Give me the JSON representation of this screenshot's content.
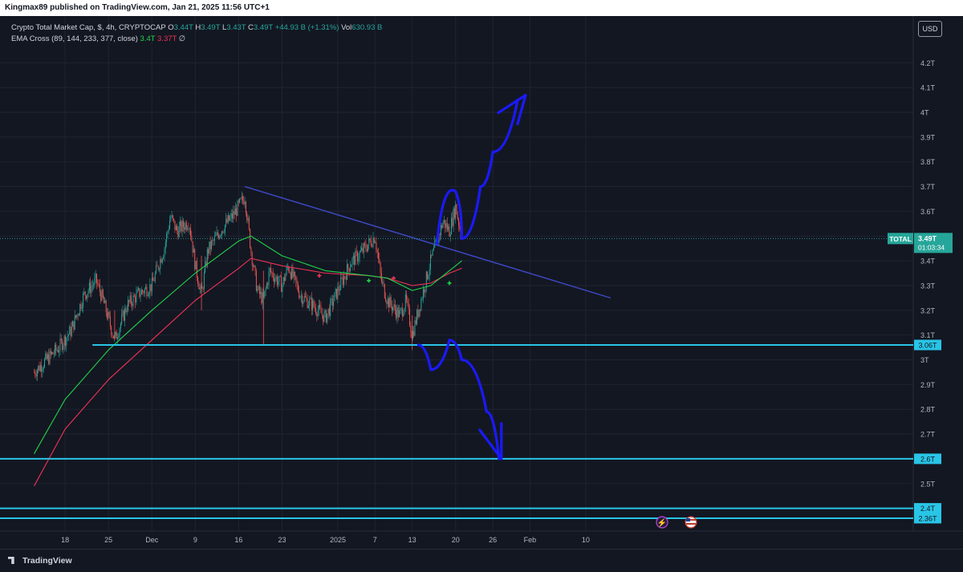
{
  "header": {
    "published_text": "Kingmax89 published on TradingView.com, Jan 21, 2025 11:56 UTC+1"
  },
  "legend": {
    "symbol": "Crypto Total Market Cap, $, 4h, CRYPTOCAP",
    "open_label": "O",
    "open_value": "3.44T",
    "high_label": "H",
    "high_value": "3.49T",
    "low_label": "L",
    "low_value": "3.43T",
    "close_label": "C",
    "close_value": "3.49T",
    "change": "+44.93 B (+1.31%)",
    "vol_label": "Vol",
    "vol_value": "630.93 B",
    "indicator": "EMA Cross (89, 144, 233, 377, close)",
    "ema_fast_value": "3.4T",
    "ema_slow_value": "3.37T",
    "indicator_extra": "∅"
  },
  "currency": "USD",
  "brand": "TradingView",
  "current_price": {
    "symbol": "TOTAL",
    "value": "3.49T",
    "countdown": "01:03:34"
  },
  "colors": {
    "background": "#131722",
    "up": "#26a69a",
    "down": "#ef5350",
    "ema_fast": "#22d34a",
    "ema_slow": "#ef3355",
    "level_line": "#29c5e6",
    "trend_line": "#3f4ac9",
    "drawing": "#1a1aff"
  },
  "chart_data": {
    "type": "candlestick",
    "y_axis": {
      "ticks": [
        "2.5T",
        "2.6T",
        "2.7T",
        "2.8T",
        "2.9T",
        "3T",
        "3.1T",
        "3.2T",
        "3.3T",
        "3.4T",
        "3.5T",
        "3.6T",
        "3.7T",
        "3.8T",
        "3.9T",
        "4T",
        "4.1T",
        "4.2T"
      ],
      "range": [
        2.34,
        4.3
      ]
    },
    "x_axis": {
      "tick_labels": [
        "18",
        "25",
        "Dec",
        "9",
        "16",
        "23",
        "2025",
        "7",
        "13",
        "20",
        "26",
        "Feb",
        "10"
      ]
    },
    "horizontal_levels": [
      {
        "value": 3.06,
        "label": "3.06T"
      },
      {
        "value": 2.6,
        "label": "2.6T"
      },
      {
        "value": 2.4,
        "label": "2.4T"
      },
      {
        "value": 2.36,
        "label": "2.36T"
      }
    ],
    "price_path": [
      [
        "Nov 13",
        2.95
      ],
      [
        "Nov 15",
        3.0
      ],
      [
        "Nov 17",
        3.05
      ],
      [
        "Nov 19",
        3.12
      ],
      [
        "Nov 21",
        3.26
      ],
      [
        "Nov 23",
        3.32
      ],
      [
        "Nov 24",
        3.25
      ],
      [
        "Nov 26",
        3.08
      ],
      [
        "Nov 28",
        3.22
      ],
      [
        "Nov 30",
        3.27
      ],
      [
        "Dec 2",
        3.3
      ],
      [
        "Dec 3",
        3.38
      ],
      [
        "Dec 4",
        3.45
      ],
      [
        "Dec 5",
        3.58
      ],
      [
        "Dec 6",
        3.52
      ],
      [
        "Dec 8",
        3.56
      ],
      [
        "Dec 9",
        3.38
      ],
      [
        "Dec 10",
        3.26
      ],
      [
        "Dec 11",
        3.44
      ],
      [
        "Dec 13",
        3.52
      ],
      [
        "Dec 15",
        3.58
      ],
      [
        "Dec 16",
        3.62
      ],
      [
        "Dec 17",
        3.66
      ],
      [
        "Dec 18",
        3.44
      ],
      [
        "Dec 19",
        3.28
      ],
      [
        "Dec 20",
        3.24
      ],
      [
        "Dec 21",
        3.36
      ],
      [
        "Dec 23",
        3.3
      ],
      [
        "Dec 24",
        3.38
      ],
      [
        "Dec 26",
        3.26
      ],
      [
        "Dec 28",
        3.22
      ],
      [
        "Dec 30",
        3.17
      ],
      [
        "Jan 1",
        3.28
      ],
      [
        "Jan 3",
        3.39
      ],
      [
        "Jan 5",
        3.44
      ],
      [
        "Jan 7",
        3.5
      ],
      [
        "Jan 8",
        3.32
      ],
      [
        "Jan 9",
        3.24
      ],
      [
        "Jan 11",
        3.18
      ],
      [
        "Jan 12",
        3.24
      ],
      [
        "Jan 13",
        3.1
      ],
      [
        "Jan 14",
        3.2
      ],
      [
        "Jan 15",
        3.3
      ],
      [
        "Jan 16",
        3.4
      ],
      [
        "Jan 17",
        3.48
      ],
      [
        "Jan 18",
        3.56
      ],
      [
        "Jan 19",
        3.52
      ],
      [
        "Jan 20",
        3.62
      ],
      [
        "Jan 21",
        3.49
      ]
    ],
    "ema_fast": [
      [
        "Nov 13",
        2.62
      ],
      [
        "Nov 18",
        2.84
      ],
      [
        "Nov 25",
        3.04
      ],
      [
        "Dec 2",
        3.2
      ],
      [
        "Dec 9",
        3.35
      ],
      [
        "Dec 16",
        3.48
      ],
      [
        "Dec 18",
        3.5
      ],
      [
        "Dec 23",
        3.42
      ],
      [
        "Dec 30",
        3.36
      ],
      [
        "Jan 6",
        3.34
      ],
      [
        "Jan 9",
        3.33
      ],
      [
        "Jan 13",
        3.28
      ],
      [
        "Jan 16",
        3.3
      ],
      [
        "Jan 19",
        3.36
      ],
      [
        "Jan 21",
        3.4
      ]
    ],
    "ema_slow": [
      [
        "Nov 13",
        2.49
      ],
      [
        "Nov 18",
        2.72
      ],
      [
        "Nov 25",
        2.92
      ],
      [
        "Dec 2",
        3.08
      ],
      [
        "Dec 9",
        3.24
      ],
      [
        "Dec 16",
        3.37
      ],
      [
        "Dec 18",
        3.41
      ],
      [
        "Dec 23",
        3.38
      ],
      [
        "Dec 30",
        3.35
      ],
      [
        "Jan 6",
        3.34
      ],
      [
        "Jan 9",
        3.33
      ],
      [
        "Jan 13",
        3.3
      ],
      [
        "Jan 16",
        3.31
      ],
      [
        "Jan 19",
        3.35
      ],
      [
        "Jan 21",
        3.37
      ]
    ],
    "cross_markers": [
      {
        "date": "Dec 29",
        "price": 3.34,
        "type": "bearish"
      },
      {
        "date": "Jan 6",
        "price": 3.32,
        "type": "bullish"
      },
      {
        "date": "Jan 10",
        "price": 3.33,
        "type": "bearish"
      },
      {
        "date": "Jan 19",
        "price": 3.31,
        "type": "bullish"
      }
    ],
    "trend_line": [
      [
        "Dec 17",
        3.7
      ],
      [
        "Feb 14",
        3.25
      ]
    ],
    "projection_up": [
      [
        "Jan 21",
        3.49
      ],
      [
        "Jan 24",
        3.7
      ],
      [
        "Jan 26",
        3.84
      ],
      [
        "Jan 30",
        4.05
      ]
    ],
    "projection_down": [
      [
        "Jan 14",
        3.06
      ],
      [
        "Jan 16",
        2.96
      ],
      [
        "Jan 19",
        3.08
      ],
      [
        "Jan 21",
        3.0
      ],
      [
        "Jan 25",
        2.79
      ],
      [
        "Jan 27",
        2.6
      ]
    ],
    "grid": true
  }
}
